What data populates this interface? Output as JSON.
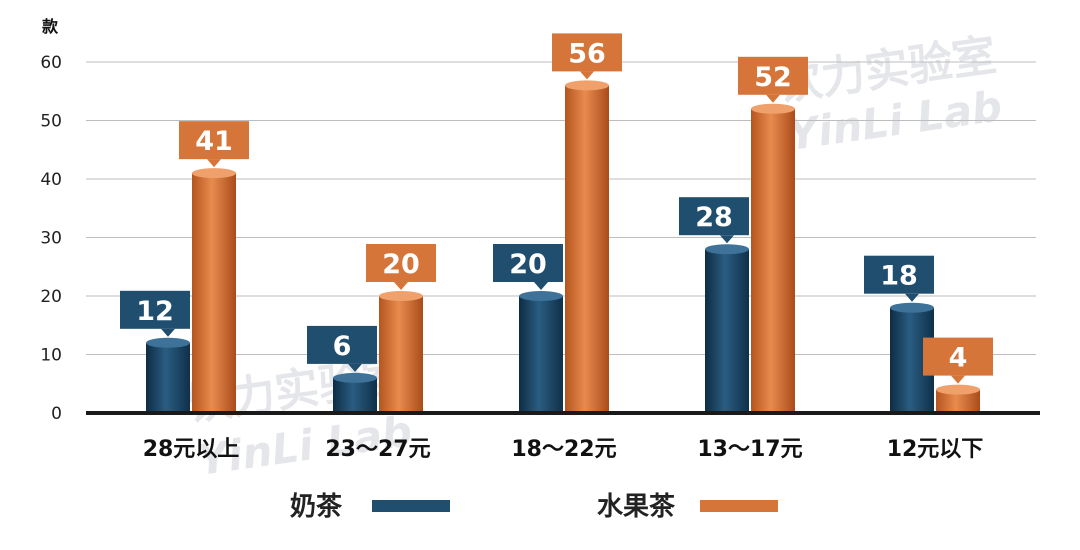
{
  "chart_data": {
    "type": "bar",
    "y_unit": "款",
    "categories": [
      "28元以上",
      "23～27元",
      "18～22元",
      "13～17元",
      "12元以下"
    ],
    "series": [
      {
        "name": "奶茶",
        "values": [
          12,
          6,
          20,
          28,
          18
        ],
        "color": "#1f4e6e"
      },
      {
        "name": "水果茶",
        "values": [
          41,
          20,
          56,
          52,
          4
        ],
        "color": "#d5753a"
      }
    ],
    "ylim": [
      0,
      60
    ],
    "yticks": [
      0,
      10,
      20,
      30,
      40,
      50,
      60
    ],
    "grid": true,
    "legend_position": "bottom"
  },
  "watermark": {
    "cn": "饮力实验室",
    "en": "YinLi Lab"
  }
}
